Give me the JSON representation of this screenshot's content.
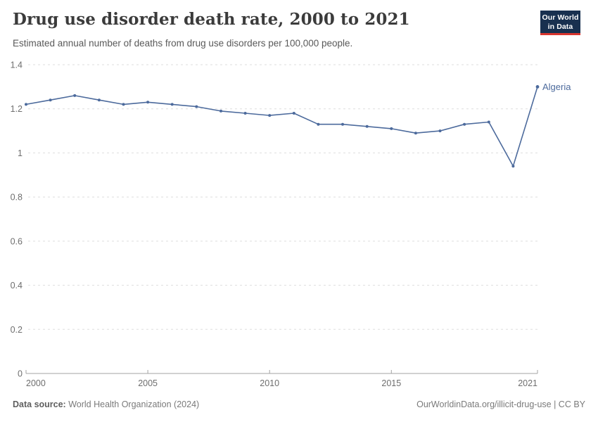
{
  "header": {
    "title": "Drug use disorder death rate, 2000 to 2021",
    "subtitle": "Estimated annual number of deaths from drug use disorders per 100,000 people.",
    "logo": {
      "line1": "Our World",
      "line2": "in Data"
    }
  },
  "chart_data": {
    "type": "line",
    "title": "Drug use disorder death rate, 2000 to 2021",
    "xlabel": "",
    "ylabel": "",
    "x": [
      2000,
      2001,
      2002,
      2003,
      2004,
      2005,
      2006,
      2007,
      2008,
      2009,
      2010,
      2011,
      2012,
      2013,
      2014,
      2015,
      2016,
      2017,
      2018,
      2019,
      2020,
      2021
    ],
    "series": [
      {
        "name": "Algeria",
        "values": [
          1.22,
          1.24,
          1.26,
          1.24,
          1.22,
          1.23,
          1.22,
          1.21,
          1.19,
          1.18,
          1.17,
          1.18,
          1.13,
          1.13,
          1.12,
          1.11,
          1.09,
          1.1,
          1.13,
          1.14,
          0.94,
          1.3
        ]
      }
    ],
    "xlim": [
      2000,
      2021
    ],
    "ylim": [
      0,
      1.4
    ],
    "yticks": [
      0,
      0.2,
      0.4,
      0.6,
      0.8,
      1,
      1.2,
      1.4
    ],
    "ytick_labels": [
      "0",
      "0.2",
      "0.4",
      "0.6",
      "0.8",
      "1",
      "1.2",
      "1.4"
    ],
    "xticks": [
      2000,
      2005,
      2010,
      2015,
      2021
    ],
    "xtick_labels": [
      "2000",
      "2005",
      "2010",
      "2015",
      "2021"
    ],
    "grid": "horizontal-dashed",
    "legend_position": "end-of-line-label",
    "entity_label": "Algeria"
  },
  "footer": {
    "source_label": "Data source:",
    "source_text": " World Health Organization (2024)",
    "credit": "OurWorldinData.org/illicit-drug-use | CC BY"
  },
  "colors": {
    "line": "#4c6a9c",
    "entity_label": "#4c6a9c",
    "grid": "#dedede",
    "axis": "#a3a3a3",
    "tick_label": "#6e6e6e",
    "logo_bg": "#18304f",
    "logo_stripe": "#d8352f",
    "title": "#3b3b3b",
    "subtitle": "#595959"
  }
}
